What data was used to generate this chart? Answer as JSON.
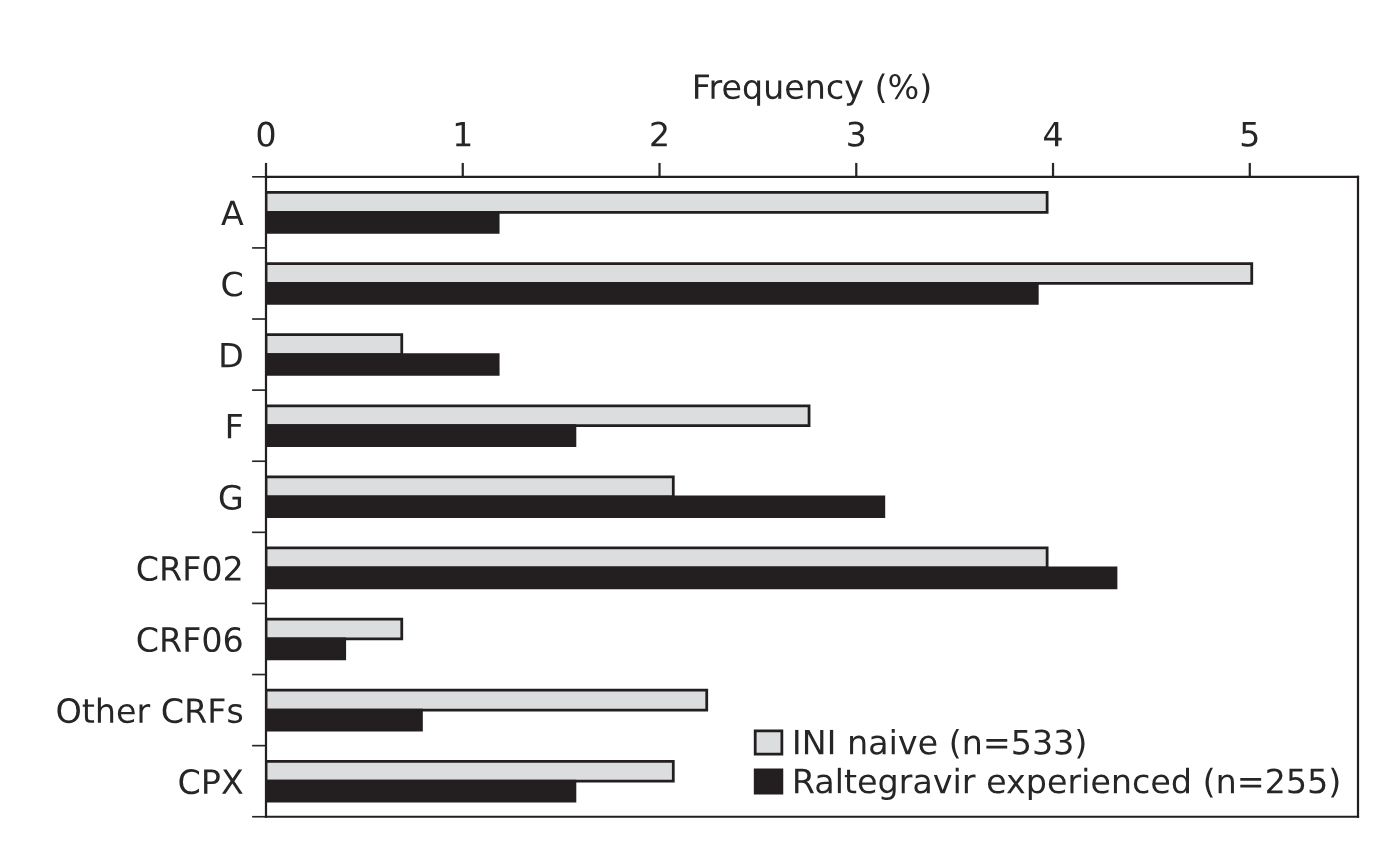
{
  "chart_data": {
    "type": "bar",
    "orientation": "horizontal",
    "xlabel": "Frequency (%)",
    "categories": [
      "A",
      "C",
      "D",
      "F",
      "G",
      "CRF02",
      "CRF06",
      "Other CRFs",
      "CPX"
    ],
    "series": [
      {
        "name": "INI naive (n=533)",
        "color": "#dcdddf",
        "values": [
          3.97,
          5.01,
          0.69,
          2.76,
          2.07,
          3.97,
          0.69,
          2.24,
          2.07
        ]
      },
      {
        "name": "Raltegravir experienced (n=255)",
        "color": "#231f20",
        "values": [
          1.18,
          3.92,
          1.18,
          1.57,
          3.14,
          4.32,
          0.4,
          0.79,
          1.57
        ]
      }
    ],
    "xlim": [
      0,
      5.55
    ],
    "xticks": [
      0,
      1,
      2,
      3,
      4,
      5
    ],
    "grid": false,
    "legend": "bottom right"
  }
}
